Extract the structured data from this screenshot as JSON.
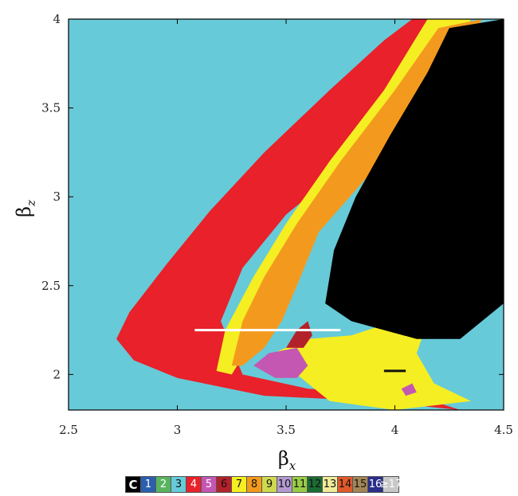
{
  "chart_data": {
    "type": "heatmap",
    "title": "",
    "xlabel": {
      "main": "β",
      "sub": "x"
    },
    "ylabel": {
      "main": "β",
      "sub": "z"
    },
    "xlim": [
      2.5,
      4.5
    ],
    "ylim": [
      1.8,
      4.0
    ],
    "xticks": [
      "2.5",
      "3",
      "3.5",
      "4",
      "4.5"
    ],
    "xtick_values": [
      2.5,
      3.0,
      3.5,
      4.0,
      4.5
    ],
    "yticks": [
      "2",
      "2.5",
      "3",
      "3.5",
      "4"
    ],
    "ytick_values": [
      2.0,
      2.5,
      3.0,
      3.5,
      4.0
    ],
    "background_class": "3",
    "regions": [
      {
        "class": "4",
        "polygon": [
          [
            2.72,
            2.2
          ],
          [
            2.78,
            2.35
          ],
          [
            2.95,
            2.62
          ],
          [
            3.15,
            2.92
          ],
          [
            3.4,
            3.25
          ],
          [
            3.7,
            3.6
          ],
          [
            3.95,
            3.88
          ],
          [
            4.08,
            4.0
          ],
          [
            4.2,
            4.0
          ],
          [
            4.3,
            3.9
          ],
          [
            4.25,
            3.55
          ],
          [
            3.8,
            3.2
          ],
          [
            3.5,
            2.9
          ],
          [
            3.3,
            2.6
          ],
          [
            3.2,
            2.3
          ],
          [
            3.3,
            2.0
          ],
          [
            3.6,
            1.92
          ],
          [
            4.1,
            1.88
          ],
          [
            4.3,
            1.8
          ],
          [
            3.9,
            1.85
          ],
          [
            3.4,
            1.88
          ],
          [
            3.0,
            1.98
          ],
          [
            2.8,
            2.08
          ]
        ]
      },
      {
        "class": "7",
        "polygon": [
          [
            3.18,
            2.02
          ],
          [
            3.22,
            2.25
          ],
          [
            3.35,
            2.55
          ],
          [
            3.5,
            2.85
          ],
          [
            3.7,
            3.2
          ],
          [
            3.95,
            3.6
          ],
          [
            4.15,
            4.0
          ],
          [
            4.35,
            4.0
          ],
          [
            4.25,
            3.75
          ],
          [
            3.95,
            3.35
          ],
          [
            3.7,
            3.0
          ],
          [
            3.55,
            2.7
          ],
          [
            3.5,
            2.45
          ],
          [
            3.4,
            2.3
          ],
          [
            3.3,
            2.1
          ],
          [
            3.25,
            2.0
          ]
        ]
      },
      {
        "class": "8",
        "polygon": [
          [
            3.25,
            2.05
          ],
          [
            3.3,
            2.3
          ],
          [
            3.4,
            2.55
          ],
          [
            3.55,
            2.85
          ],
          [
            3.75,
            3.2
          ],
          [
            4.0,
            3.6
          ],
          [
            4.2,
            3.95
          ],
          [
            4.4,
            4.0
          ],
          [
            4.25,
            3.6
          ],
          [
            3.9,
            3.15
          ],
          [
            3.65,
            2.8
          ],
          [
            3.55,
            2.5
          ],
          [
            3.48,
            2.3
          ],
          [
            3.4,
            2.15
          ],
          [
            3.3,
            2.05
          ]
        ]
      },
      {
        "class": "7",
        "polygon": [
          [
            3.4,
            2.1
          ],
          [
            3.6,
            2.2
          ],
          [
            3.8,
            2.22
          ],
          [
            3.95,
            2.28
          ],
          [
            4.02,
            2.4
          ],
          [
            4.08,
            2.6
          ],
          [
            4.15,
            2.8
          ],
          [
            4.18,
            2.4
          ],
          [
            4.1,
            2.12
          ],
          [
            4.18,
            1.95
          ],
          [
            4.35,
            1.85
          ],
          [
            4.0,
            1.8
          ],
          [
            3.7,
            1.85
          ],
          [
            3.55,
            2.0
          ]
        ]
      },
      {
        "class": "C",
        "polygon": [
          [
            3.68,
            2.4
          ],
          [
            3.72,
            2.7
          ],
          [
            3.82,
            3.0
          ],
          [
            3.98,
            3.35
          ],
          [
            4.15,
            3.7
          ],
          [
            4.25,
            3.95
          ],
          [
            4.5,
            4.0
          ],
          [
            4.5,
            2.4
          ],
          [
            4.3,
            2.2
          ],
          [
            4.1,
            2.2
          ],
          [
            3.95,
            2.25
          ],
          [
            3.8,
            2.3
          ]
        ]
      },
      {
        "class": "5",
        "polygon": [
          [
            3.35,
            2.05
          ],
          [
            3.42,
            2.12
          ],
          [
            3.55,
            2.15
          ],
          [
            3.6,
            2.05
          ],
          [
            3.55,
            1.98
          ],
          [
            3.45,
            1.98
          ]
        ]
      },
      {
        "class": "6",
        "polygon": [
          [
            3.5,
            2.15
          ],
          [
            3.55,
            2.25
          ],
          [
            3.6,
            2.3
          ],
          [
            3.62,
            2.22
          ],
          [
            3.58,
            2.15
          ]
        ]
      },
      {
        "class": "5",
        "polygon": [
          [
            4.03,
            1.92
          ],
          [
            4.08,
            1.95
          ],
          [
            4.1,
            1.9
          ],
          [
            4.05,
            1.88
          ]
        ]
      }
    ],
    "lines": [
      {
        "color": "#ffffff",
        "x": [
          3.08,
          3.75
        ],
        "y": [
          2.25,
          2.25
        ]
      },
      {
        "color": "#111111",
        "x": [
          3.95,
          4.05
        ],
        "y": [
          2.02,
          2.02
        ]
      }
    ],
    "legend": [
      {
        "label": "C",
        "color": "#000000",
        "text_color": "#ffffff"
      },
      {
        "label": "1",
        "color": "#2b5fad",
        "text_color": "#ffffff"
      },
      {
        "label": "2",
        "color": "#58b45f",
        "text_color": "#ffffff"
      },
      {
        "label": "3",
        "color": "#67cad8",
        "text_color": "#111111"
      },
      {
        "label": "4",
        "color": "#e8212a",
        "text_color": "#ffffff"
      },
      {
        "label": "5",
        "color": "#c457b2",
        "text_color": "#ffffff"
      },
      {
        "label": "6",
        "color": "#b3212a",
        "text_color": "#111111"
      },
      {
        "label": "7",
        "color": "#f5ee22",
        "text_color": "#111111"
      },
      {
        "label": "8",
        "color": "#f39a1e",
        "text_color": "#111111"
      },
      {
        "label": "9",
        "color": "#cfd94f",
        "text_color": "#111111"
      },
      {
        "label": "10",
        "color": "#b49ad0",
        "text_color": "#111111"
      },
      {
        "label": "11",
        "color": "#98cc47",
        "text_color": "#111111"
      },
      {
        "label": "12",
        "color": "#1b6b34",
        "text_color": "#111111"
      },
      {
        "label": "13",
        "color": "#f2ec9a",
        "text_color": "#111111"
      },
      {
        "label": "14",
        "color": "#e05a2c",
        "text_color": "#111111"
      },
      {
        "label": "15",
        "color": "#a48656",
        "text_color": "#111111"
      },
      {
        "label": "16",
        "color": "#2a2e88",
        "text_color": "#ffffff"
      },
      {
        "label": "≥17",
        "color": "#c8c8c8",
        "text_color": "#ffffff"
      }
    ]
  }
}
